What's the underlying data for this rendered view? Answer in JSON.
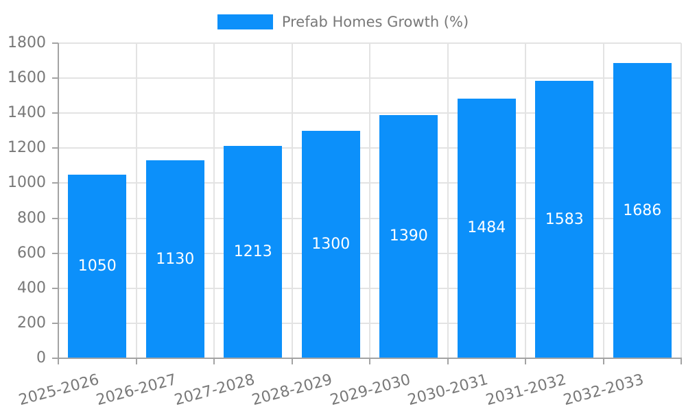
{
  "legend": {
    "label": "Prefab Homes Growth (%)"
  },
  "colors": {
    "bar": "#0C90FA",
    "grid": "#e3e3e3",
    "axis": "#a3a3a3",
    "tick_text": "#787878",
    "value_text": "#ffffff",
    "background": "#ffffff"
  },
  "chart_data": {
    "type": "bar",
    "title": "",
    "legend_entries": [
      "Prefab Homes Growth (%)"
    ],
    "legend_position": "top-center",
    "categories": [
      "2025-2026",
      "2026-2027",
      "2027-2028",
      "2028-2029",
      "2029-2030",
      "2030-2031",
      "2031-2032",
      "2032-2033"
    ],
    "values": [
      1050,
      1130,
      1213,
      1300,
      1390,
      1484,
      1583,
      1686
    ],
    "bar_labels": [
      "1050",
      "1130",
      "1213",
      "1300",
      "1390",
      "1484",
      "1583",
      "1686"
    ],
    "xlabel": "",
    "ylabel": "",
    "ylim": [
      0,
      1800
    ],
    "yticks": [
      0,
      200,
      400,
      600,
      800,
      1000,
      1200,
      1400,
      1600,
      1800
    ],
    "grid": true,
    "x_label_rotation_deg": -15,
    "bar_label_position": "center-inside"
  }
}
